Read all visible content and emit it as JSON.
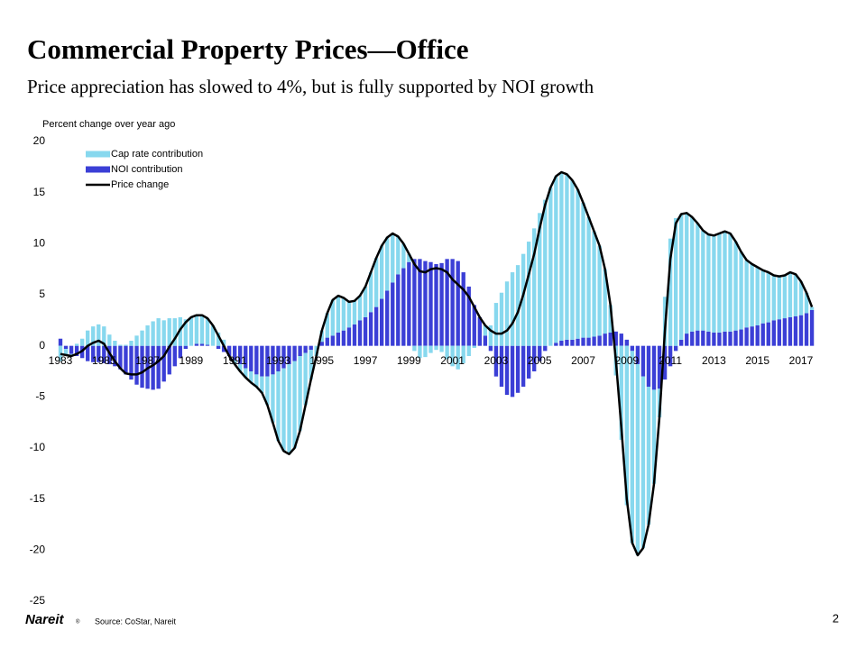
{
  "header": {
    "title": "Commercial Property Prices—Office",
    "subtitle": "Price appreciation has slowed to 4%, but is fully supported by NOI growth"
  },
  "footer": {
    "logo": "Nareit",
    "logo_mark": "®",
    "source": "Source: CoStar, Nareit",
    "page": "2"
  },
  "chart_data": {
    "type": "bar",
    "stacked": true,
    "y_label": "Percent change over year ago",
    "categories": [
      "1983",
      null,
      null,
      null,
      null,
      null,
      null,
      null,
      "1985",
      null,
      null,
      null,
      null,
      null,
      null,
      null,
      "1987",
      null,
      null,
      null,
      null,
      null,
      null,
      null,
      "1989",
      null,
      null,
      null,
      null,
      null,
      null,
      null,
      "1991",
      null,
      null,
      null,
      null,
      null,
      null,
      null,
      "1993",
      null,
      null,
      null,
      null,
      null,
      null,
      null,
      "1995",
      null,
      null,
      null,
      null,
      null,
      null,
      null,
      "1997",
      null,
      null,
      null,
      null,
      null,
      null,
      null,
      "1999",
      null,
      null,
      null,
      null,
      null,
      null,
      null,
      "2001",
      null,
      null,
      null,
      null,
      null,
      null,
      null,
      "2003",
      null,
      null,
      null,
      null,
      null,
      null,
      null,
      "2005",
      null,
      null,
      null,
      null,
      null,
      null,
      null,
      "2007",
      null,
      null,
      null,
      null,
      null,
      null,
      null,
      "2009",
      null,
      null,
      null,
      null,
      null,
      null,
      null,
      "2011",
      null,
      null,
      null,
      null,
      null,
      null,
      null,
      "2013",
      null,
      null,
      null,
      null,
      null,
      null,
      null,
      "2015",
      null,
      null,
      null,
      null,
      null,
      null,
      null,
      "2017",
      null,
      null
    ],
    "series": [
      {
        "name": "Cap rate contribution",
        "type": "bar",
        "color": "#87d8ee",
        "values": [
          -1.5,
          -0.6,
          -0.2,
          0.2,
          0.7,
          1.5,
          1.9,
          2.1,
          1.9,
          1.1,
          0.5,
          0.1,
          0.1,
          0.5,
          1.0,
          1.5,
          2.0,
          2.4,
          2.7,
          2.5,
          2.7,
          2.7,
          2.8,
          2.6,
          2.8,
          2.8,
          2.8,
          2.6,
          2.0,
          1.3,
          0.6,
          0,
          -0.4,
          -0.7,
          -0.9,
          -1.1,
          -1.2,
          -1.6,
          -2.8,
          -4.7,
          -6.8,
          -8.1,
          -8.8,
          -8.5,
          -7.3,
          -5.1,
          -2.9,
          -1.0,
          1.1,
          2.4,
          3.5,
          3.6,
          3.2,
          2.5,
          2.3,
          2.4,
          3.0,
          3.9,
          4.8,
          5.2,
          5.2,
          4.8,
          3.7,
          2.4,
          0.8,
          -0.5,
          -1.2,
          -1.1,
          -0.7,
          -0.4,
          -0.6,
          -1.3,
          -2.0,
          -2.3,
          -1.7,
          -1.0,
          -0.2,
          0,
          1.0,
          2.0,
          4.2,
          5.2,
          6.3,
          7.2,
          7.9,
          9.0,
          10.2,
          11.5,
          13.0,
          14.3,
          15.5,
          16.3,
          16.5,
          16.2,
          15.6,
          14.6,
          13.2,
          11.8,
          10.3,
          8.8,
          6.3,
          2.7,
          -2.9,
          -9.2,
          -15.6,
          -18.8,
          -18.7,
          -16.8,
          -13.5,
          -9.2,
          -2.8,
          4.8,
          10.5,
          12.5,
          12.3,
          11.8,
          11.2,
          10.5,
          9.8,
          9.5,
          9.5,
          9.7,
          9.8,
          9.6,
          8.7,
          7.6,
          6.6,
          6.1,
          5.7,
          5.2,
          4.9,
          4.4,
          4.2,
          4.2,
          4.4,
          4.1,
          3.3,
          2.0,
          0.3
        ]
      },
      {
        "name": "NOI contribution",
        "type": "bar",
        "color": "#3b3fd6",
        "values": [
          0.7,
          -0.3,
          -0.8,
          -1.0,
          -1.2,
          -1.5,
          -1.6,
          -1.6,
          -1.7,
          -1.8,
          -2.0,
          -2.3,
          -2.8,
          -3.3,
          -3.8,
          -4.1,
          -4.2,
          -4.3,
          -4.2,
          -3.5,
          -2.8,
          -2.0,
          -1.2,
          -0.3,
          0,
          0.2,
          0.2,
          0.1,
          0,
          -0.3,
          -0.6,
          -1.0,
          -1.4,
          -1.8,
          -2.2,
          -2.5,
          -2.8,
          -3.0,
          -3.0,
          -2.8,
          -2.5,
          -2.2,
          -1.8,
          -1.5,
          -1.0,
          -0.7,
          -0.4,
          0,
          0.4,
          0.8,
          1.0,
          1.3,
          1.5,
          1.8,
          2.1,
          2.5,
          2.8,
          3.3,
          3.8,
          4.6,
          5.4,
          6.2,
          7.0,
          7.6,
          8.2,
          8.5,
          8.5,
          8.3,
          8.2,
          8.0,
          8.1,
          8.5,
          8.5,
          8.3,
          7.2,
          5.8,
          4.0,
          2.8,
          1.0,
          -0.5,
          -3.0,
          -4.0,
          -4.8,
          -5.0,
          -4.6,
          -4.0,
          -3.2,
          -2.5,
          -1.5,
          -0.5,
          0,
          0.3,
          0.5,
          0.6,
          0.6,
          0.7,
          0.8,
          0.8,
          0.9,
          1.0,
          1.2,
          1.3,
          1.4,
          1.2,
          0.6,
          -0.5,
          -1.8,
          -3.0,
          -4.0,
          -4.3,
          -4.2,
          -3.3,
          -2.0,
          -0.5,
          0.6,
          1.2,
          1.4,
          1.5,
          1.5,
          1.4,
          1.3,
          1.3,
          1.4,
          1.4,
          1.5,
          1.6,
          1.8,
          1.9,
          2.0,
          2.2,
          2.3,
          2.5,
          2.6,
          2.7,
          2.8,
          2.9,
          3.0,
          3.2,
          3.5
        ]
      },
      {
        "name": "Price change",
        "type": "line",
        "color": "#000000",
        "values": [
          -0.8,
          -0.9,
          -1.0,
          -0.8,
          -0.5,
          0,
          0.3,
          0.5,
          0.2,
          -0.7,
          -1.5,
          -2.2,
          -2.7,
          -2.8,
          -2.8,
          -2.6,
          -2.2,
          -1.9,
          -1.5,
          -1.0,
          -0.1,
          0.7,
          1.6,
          2.3,
          2.8,
          3.0,
          3.0,
          2.7,
          2.0,
          1.0,
          0,
          -1.0,
          -1.8,
          -2.5,
          -3.1,
          -3.6,
          -4.0,
          -4.6,
          -5.8,
          -7.5,
          -9.3,
          -10.3,
          -10.6,
          -10.0,
          -8.3,
          -5.8,
          -3.3,
          -1.0,
          1.5,
          3.2,
          4.5,
          4.9,
          4.7,
          4.3,
          4.4,
          4.9,
          5.8,
          7.2,
          8.6,
          9.8,
          10.6,
          11.0,
          10.7,
          10.0,
          9.0,
          8.0,
          7.3,
          7.2,
          7.5,
          7.6,
          7.5,
          7.2,
          6.5,
          6.0,
          5.5,
          4.8,
          3.8,
          2.8,
          2.0,
          1.5,
          1.2,
          1.2,
          1.5,
          2.2,
          3.3,
          5.0,
          7.0,
          9.0,
          11.5,
          13.8,
          15.5,
          16.6,
          17.0,
          16.8,
          16.2,
          15.3,
          14.0,
          12.6,
          11.2,
          9.8,
          7.5,
          4.0,
          -1.5,
          -8.0,
          -15.0,
          -19.3,
          -20.5,
          -19.8,
          -17.5,
          -13.5,
          -7.0,
          1.5,
          8.5,
          12.0,
          12.9,
          13.0,
          12.6,
          12.0,
          11.3,
          10.9,
          10.8,
          11.0,
          11.2,
          11.0,
          10.2,
          9.2,
          8.4,
          8.0,
          7.7,
          7.4,
          7.2,
          6.9,
          6.8,
          6.9,
          7.2,
          7.0,
          6.3,
          5.2,
          3.8
        ]
      }
    ],
    "ylim": [
      -25,
      20
    ],
    "yticks": [
      -25,
      -20,
      -15,
      -10,
      -5,
      0,
      5,
      10,
      15,
      20
    ],
    "grid": false,
    "legend": "top-left"
  }
}
